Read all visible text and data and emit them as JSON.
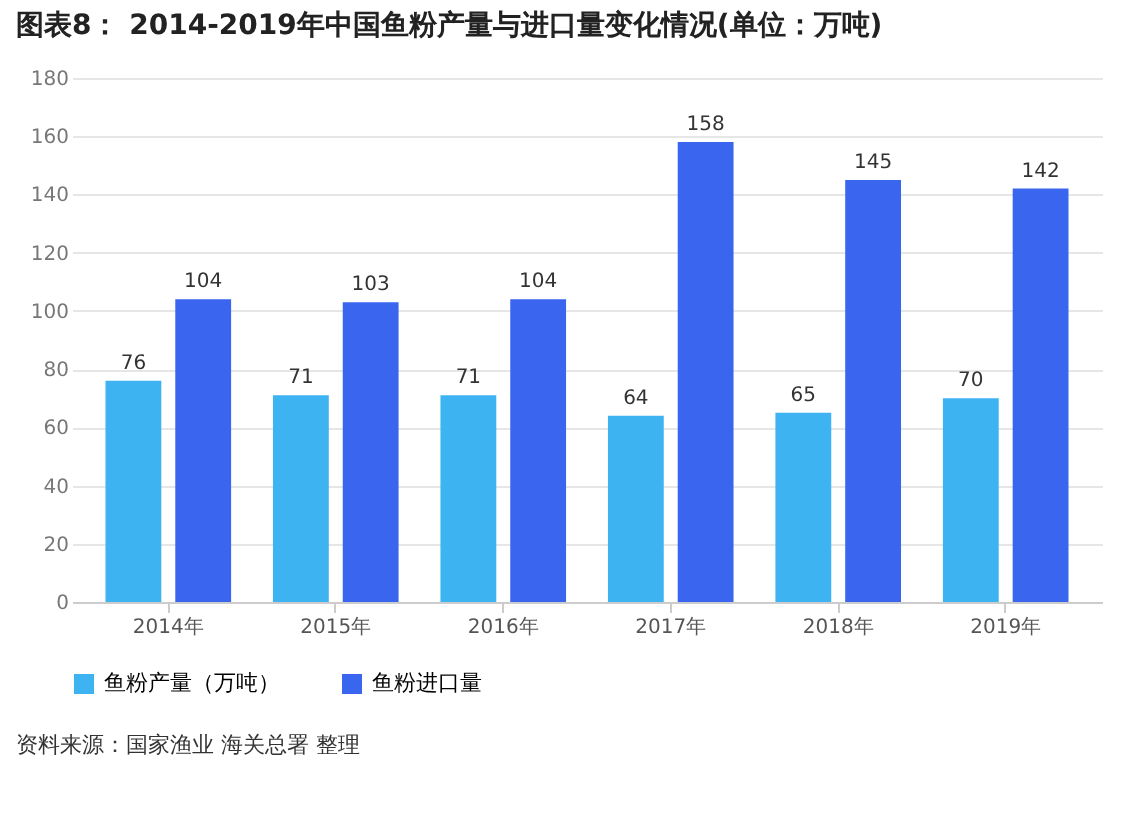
{
  "chart_data": {
    "type": "bar",
    "title": "图表8： 2014-2019年中国鱼粉产量与进口量变化情况(单位：万吨)",
    "categories": [
      "2014年",
      "2015年",
      "2016年",
      "2017年",
      "2018年",
      "2019年"
    ],
    "series": [
      {
        "name": "鱼粉产量（万吨）",
        "color": "#3db3f2",
        "values": [
          76,
          71,
          71,
          64,
          65,
          70
        ]
      },
      {
        "name": "鱼粉进口量",
        "color": "#3a66ef",
        "values": [
          104,
          103,
          104,
          158,
          145,
          142
        ]
      }
    ],
    "ylim": [
      0,
      180
    ],
    "yticks": [
      0,
      20,
      40,
      60,
      80,
      100,
      120,
      140,
      160,
      180
    ],
    "grid": "y",
    "legend": "bottom",
    "data_labels": true,
    "annotations": [
      "资料来源：国家渔业 海关总署 整理"
    ]
  }
}
